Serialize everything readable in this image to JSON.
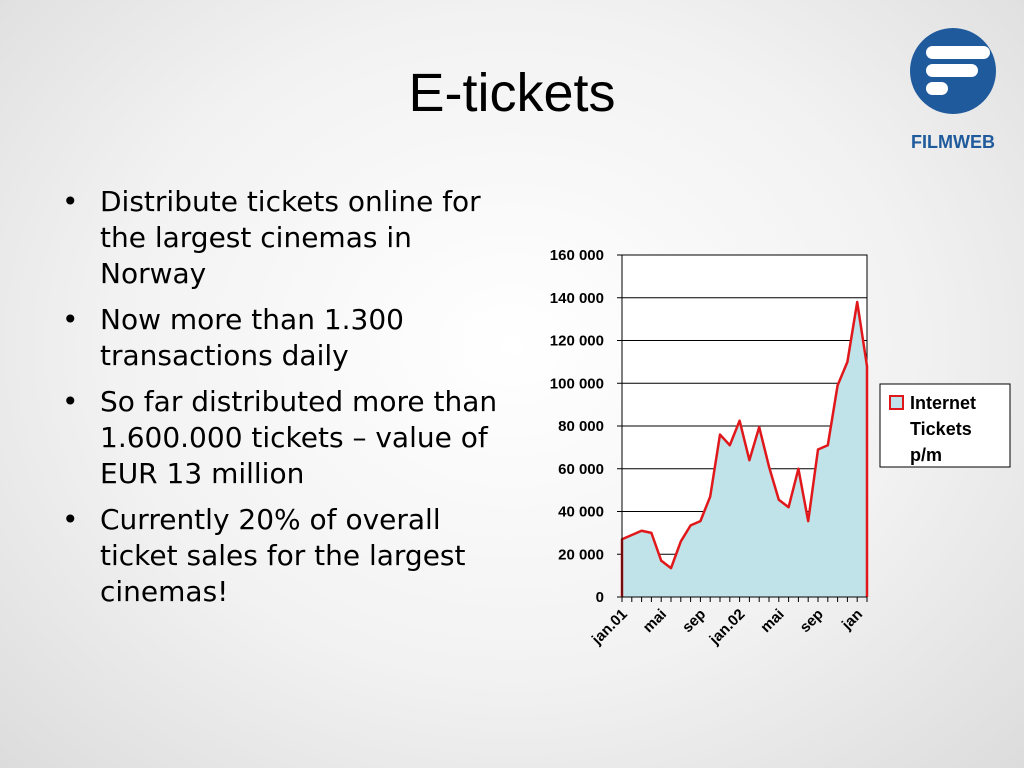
{
  "slide": {
    "title": "E-tickets"
  },
  "logo": {
    "text": "FILMWEB",
    "color": "#1f5a9c"
  },
  "bullets": [
    "Distribute tickets online for the largest cinemas in Norway",
    "Now more than 1.300 transactions daily",
    "So far distributed more than 1.600.000 tickets – value of EUR 13 million",
    "Currently 20% of overall ticket sales for the largest cinemas!"
  ],
  "chart_data": {
    "type": "area",
    "title": "",
    "xlabel": "",
    "ylabel": "",
    "ylim": [
      0,
      160000
    ],
    "yticks": [
      "0",
      "20 000",
      "40 000",
      "60 000",
      "80 000",
      "100 000",
      "120 000",
      "140 000",
      "160 000"
    ],
    "xtick_labels": [
      {
        "index": 0,
        "label": "jan.01"
      },
      {
        "index": 4,
        "label": "mai"
      },
      {
        "index": 8,
        "label": "sep"
      },
      {
        "index": 12,
        "label": "jan.02"
      },
      {
        "index": 16,
        "label": "mai"
      },
      {
        "index": 20,
        "label": "sep"
      },
      {
        "index": 24,
        "label": "jan"
      }
    ],
    "grid": "horizontal",
    "legend": "right",
    "series": [
      {
        "name": "Internet Tickets p/m",
        "legend_lines": [
          "Internet",
          "Tickets",
          "p/m"
        ],
        "fill": "#bfe3e8",
        "stroke": "#e0181b",
        "values": [
          27000,
          29000,
          31000,
          30000,
          17000,
          13500,
          26000,
          33500,
          35500,
          47000,
          76000,
          71000,
          82500,
          64000,
          79500,
          61000,
          45500,
          42000,
          60000,
          35500,
          69000,
          71000,
          99000,
          110000,
          138000,
          108000
        ]
      }
    ]
  }
}
